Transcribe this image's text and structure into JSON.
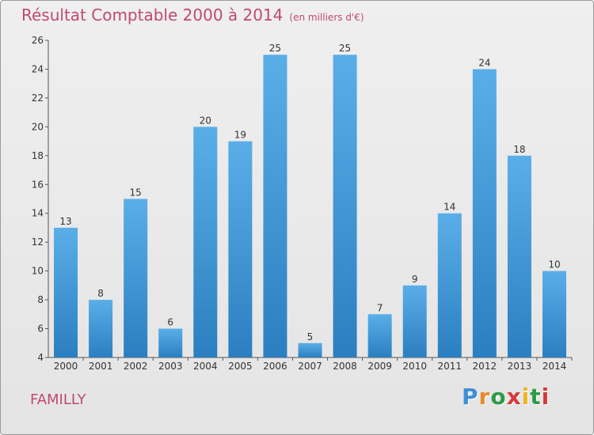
{
  "chart_data": {
    "type": "bar",
    "title": "Résultat Comptable 2000 à 2014",
    "subtitle": "(en milliers d'€)",
    "categories": [
      "2000",
      "2001",
      "2002",
      "2003",
      "2004",
      "2005",
      "2006",
      "2007",
      "2008",
      "2009",
      "2010",
      "2011",
      "2012",
      "2013",
      "2014"
    ],
    "values": [
      13,
      8,
      15,
      6,
      20,
      19,
      25,
      5,
      25,
      7,
      9,
      14,
      24,
      18,
      10
    ],
    "xlabel": "",
    "ylabel": "",
    "ylim": [
      4,
      26
    ],
    "yticks": [
      4,
      6,
      8,
      10,
      12,
      14,
      16,
      18,
      20,
      22,
      24,
      26
    ],
    "grid": false,
    "bar_color": "#3d97d8"
  },
  "place_name": "FAMILLY",
  "logo": {
    "letters": [
      "P",
      "r",
      "o",
      "x",
      "i",
      "t",
      "i"
    ],
    "colors": [
      "#3e8fd6",
      "#e8892b",
      "#2e9a44",
      "#d63a3a",
      "#f0b41c",
      "#2e9a44",
      "#d63a3a"
    ]
  }
}
